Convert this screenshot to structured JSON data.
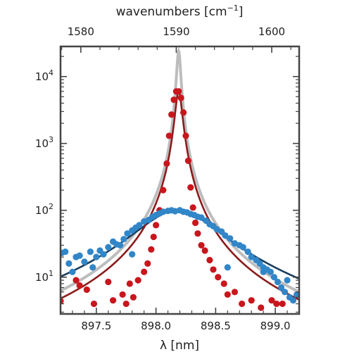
{
  "chart_data": {
    "type": "scatter",
    "title": "",
    "xlabel": "λ [nm]",
    "top_xlabel_text": "wavenumbers [cm",
    "top_xlabel_sup": "−1",
    "top_xlabel_close": "]",
    "ylabel": "",
    "xlim": [
      897.2,
      899.2
    ],
    "ylim_log10": [
      0.45,
      4.45
    ],
    "y_scale": "log",
    "grid": false,
    "legend": "none",
    "x_ticks": [
      {
        "value": 897.5,
        "label": "897.5"
      },
      {
        "value": 898.0,
        "label": "898.0"
      },
      {
        "value": 898.5,
        "label": "898.5"
      },
      {
        "value": 899.0,
        "label": "899.0"
      }
    ],
    "top_ticks": [
      {
        "value": 1580,
        "label": "1580"
      },
      {
        "value": 1590,
        "label": "1590"
      },
      {
        "value": 1600,
        "label": "1600"
      }
    ],
    "y_ticks": [
      {
        "exp": 1,
        "base": "10",
        "sup": "1"
      },
      {
        "exp": 2,
        "base": "10",
        "sup": "2"
      },
      {
        "exp": 3,
        "base": "10",
        "sup": "3"
      },
      {
        "exp": 4,
        "base": "10",
        "sup": "4"
      }
    ],
    "top_axis_mapping": {
      "x_at_1580": 897.37,
      "x_at_1600": 898.97
    },
    "colors": {
      "red_points": "#c8161d",
      "red_fit": "#8b1b1b",
      "blue_points": "#3186c8",
      "blue_fit": "#1a3e5e",
      "gray_fit": "#bdbdbd",
      "frame": "#444444"
    },
    "series": [
      {
        "kind": "points",
        "color_key": "red_points",
        "points": [
          [
            897.2,
            4.4
          ],
          [
            897.33,
            9.0
          ],
          [
            897.36,
            7.5
          ],
          [
            897.42,
            6.5
          ],
          [
            897.48,
            4.0
          ],
          [
            897.6,
            8.5
          ],
          [
            897.64,
            4.5
          ],
          [
            897.72,
            5.5
          ],
          [
            897.75,
            4.0
          ],
          [
            897.78,
            8.0
          ],
          [
            897.81,
            5.0
          ],
          [
            897.85,
            9.0
          ],
          [
            897.9,
            12
          ],
          [
            897.93,
            16
          ],
          [
            897.96,
            26
          ],
          [
            897.98,
            40
          ],
          [
            898.0,
            60
          ],
          [
            898.03,
            100
          ],
          [
            898.06,
            200
          ],
          [
            898.09,
            500
          ],
          [
            898.11,
            1300
          ],
          [
            898.13,
            2700
          ],
          [
            898.15,
            4500
          ],
          [
            898.17,
            6000
          ],
          [
            898.19,
            6000
          ],
          [
            898.21,
            4800
          ],
          [
            898.23,
            2900
          ],
          [
            898.25,
            1300
          ],
          [
            898.27,
            550
          ],
          [
            898.29,
            220
          ],
          [
            898.31,
            110
          ],
          [
            898.33,
            65
          ],
          [
            898.35,
            45
          ],
          [
            898.38,
            30
          ],
          [
            898.41,
            25
          ],
          [
            898.45,
            18
          ],
          [
            898.48,
            13
          ],
          [
            898.52,
            10
          ],
          [
            898.57,
            8.0
          ],
          [
            898.6,
            5.5
          ],
          [
            898.66,
            6.0
          ],
          [
            898.72,
            4.0
          ],
          [
            898.8,
            4.5
          ],
          [
            898.88,
            3.5
          ],
          [
            898.97,
            4.5
          ],
          [
            899.01,
            4.0
          ],
          [
            899.06,
            4.0
          ]
        ]
      },
      {
        "kind": "points",
        "color_key": "blue_points",
        "points": [
          [
            897.21,
            23
          ],
          [
            897.24,
            24
          ],
          [
            897.27,
            16
          ],
          [
            897.3,
            12
          ],
          [
            897.33,
            20
          ],
          [
            897.36,
            21
          ],
          [
            897.4,
            17
          ],
          [
            897.45,
            24
          ],
          [
            897.47,
            14
          ],
          [
            897.5,
            20
          ],
          [
            897.53,
            25
          ],
          [
            897.56,
            22
          ],
          [
            897.6,
            28
          ],
          [
            897.64,
            34
          ],
          [
            897.67,
            31
          ],
          [
            897.7,
            30
          ],
          [
            897.73,
            37
          ],
          [
            897.76,
            45
          ],
          [
            897.8,
            50
          ],
          [
            897.83,
            55
          ],
          [
            897.86,
            60
          ],
          [
            897.9,
            68
          ],
          [
            897.94,
            72
          ],
          [
            897.97,
            80
          ],
          [
            898.0,
            85
          ],
          [
            898.03,
            90
          ],
          [
            898.06,
            95
          ],
          [
            898.1,
            98
          ],
          [
            898.13,
            100
          ],
          [
            898.16,
            97
          ],
          [
            898.2,
            100
          ],
          [
            898.23,
            95
          ],
          [
            898.26,
            93
          ],
          [
            898.29,
            88
          ],
          [
            898.32,
            85
          ],
          [
            898.35,
            80
          ],
          [
            898.38,
            78
          ],
          [
            898.42,
            70
          ],
          [
            898.45,
            62
          ],
          [
            898.48,
            58
          ],
          [
            898.51,
            52
          ],
          [
            898.55,
            48
          ],
          [
            898.58,
            42
          ],
          [
            898.62,
            38
          ],
          [
            898.66,
            32
          ],
          [
            898.7,
            30
          ],
          [
            898.73,
            28
          ],
          [
            898.77,
            24
          ],
          [
            898.8,
            20
          ],
          [
            898.84,
            18
          ],
          [
            898.87,
            16
          ],
          [
            898.9,
            14
          ],
          [
            898.93,
            13
          ],
          [
            898.96,
            12
          ],
          [
            898.99,
            10
          ],
          [
            899.02,
            8.5
          ],
          [
            899.05,
            7.0
          ],
          [
            899.08,
            6.0
          ],
          [
            899.12,
            5.0
          ],
          [
            899.15,
            4.5
          ],
          [
            899.18,
            5.5
          ],
          [
            897.8,
            22
          ],
          [
            898.6,
            14
          ],
          [
            898.9,
            12
          ],
          [
            899.1,
            9.0
          ]
        ]
      },
      {
        "kind": "lorentzian",
        "color_key": "gray_fit",
        "center": 898.19,
        "gamma": 0.016,
        "peak": 24000,
        "background": 0
      },
      {
        "kind": "lorentzian",
        "color_key": "red_fit",
        "center": 898.19,
        "gamma": 0.028,
        "peak": 6000,
        "background": 0
      },
      {
        "kind": "lorentzian",
        "color_key": "blue_fit",
        "center": 898.18,
        "gamma": 0.33,
        "peak": 100,
        "background": 0
      }
    ]
  }
}
